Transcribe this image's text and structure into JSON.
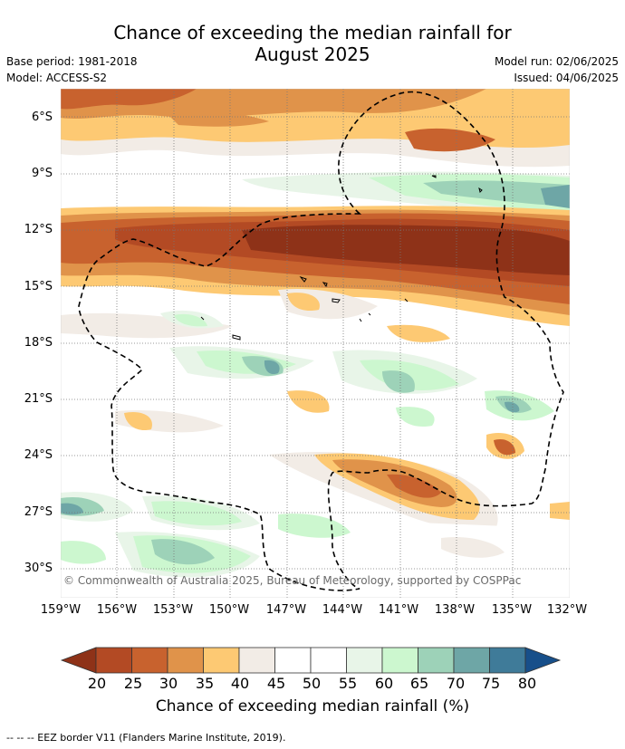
{
  "title": {
    "line1": "Chance of exceeding the median rainfall for",
    "line2": "August 2025"
  },
  "meta": {
    "base_period": "Base period: 1981-2018",
    "model": "Model: ACCESS-S2",
    "model_run": "Model run: 02/06/2025",
    "issued": "Issued: 04/06/2025"
  },
  "map": {
    "lat_labels": [
      "6°S",
      "9°S",
      "12°S",
      "15°S",
      "18°S",
      "21°S",
      "24°S",
      "27°S",
      "30°S"
    ],
    "lon_labels": [
      "159°W",
      "156°W",
      "153°W",
      "150°W",
      "147°W",
      "144°W",
      "141°W",
      "138°W",
      "135°W",
      "132°W"
    ],
    "copyright": "© Commonwealth of Australia 2025, Bureau of Meteorology, supported by COSPPac",
    "lon_range": [
      -159,
      -132
    ],
    "lat_range": [
      -31.5,
      -4.5
    ],
    "grid": true
  },
  "colorbar": {
    "ticks": [
      "20",
      "25",
      "30",
      "35",
      "40",
      "45",
      "50",
      "55",
      "60",
      "65",
      "70",
      "75",
      "80"
    ],
    "colors": [
      "#8e3218",
      "#b34a24",
      "#c8622e",
      "#e0934a",
      "#fdc973",
      "#f2ece6",
      "#ffffff",
      "#ffffff",
      "#e8f5e8",
      "#ccf7cf",
      "#9dd2b8",
      "#6ea6a6",
      "#3f7b99",
      "#174f8a"
    ],
    "title": "Chance of exceeding median rainfall (%)"
  },
  "footnote": "--  --  -- EEZ border V11 (Flanders Marine Institute, 2019)."
}
